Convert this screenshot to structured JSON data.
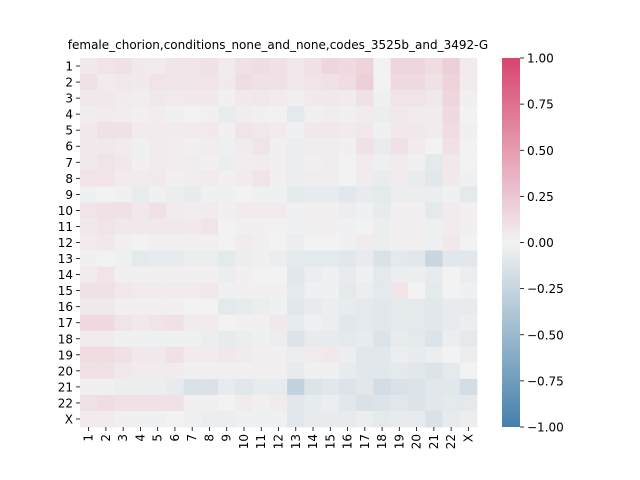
{
  "chart_data": {
    "type": "heatmap",
    "title": "female_chorion,conditions_none_and_none,codes_3525b_and_3492-G",
    "xlabel": "",
    "ylabel": "",
    "labels": [
      "1",
      "2",
      "3",
      "4",
      "5",
      "6",
      "7",
      "8",
      "9",
      "10",
      "11",
      "12",
      "13",
      "14",
      "15",
      "16",
      "17",
      "18",
      "19",
      "20",
      "21",
      "22",
      "X"
    ],
    "vlim": [
      -1.0,
      1.0
    ],
    "colorbar": {
      "ticks": [
        1.0,
        0.75,
        0.5,
        0.25,
        0.0,
        -0.25,
        -0.5,
        -0.75,
        -1.0
      ],
      "tick_labels": [
        "1.00",
        "0.75",
        "0.50",
        "0.25",
        "0.00",
        "−0.25",
        "−0.50",
        "−0.75",
        "−1.00"
      ],
      "high_color": "#d8456f",
      "mid_color": "#f2f2f2",
      "low_color": "#4580ab"
    },
    "values": [
      [
        0.05,
        0.08,
        0.1,
        0.05,
        0.04,
        0.08,
        0.08,
        0.1,
        0.04,
        0.1,
        0.12,
        0.1,
        0.06,
        0.1,
        0.16,
        0.14,
        0.18,
        0.0,
        0.16,
        0.16,
        0.12,
        0.2,
        0.04
      ],
      [
        0.1,
        0.04,
        0.06,
        0.05,
        0.08,
        0.07,
        0.07,
        0.08,
        0.05,
        0.12,
        0.1,
        0.1,
        0.06,
        0.08,
        0.1,
        0.12,
        0.2,
        0.0,
        0.14,
        0.14,
        0.1,
        0.18,
        0.04
      ],
      [
        0.06,
        0.06,
        0.04,
        0.03,
        0.06,
        0.04,
        0.05,
        0.05,
        0.02,
        0.05,
        0.06,
        0.04,
        0.02,
        0.05,
        0.06,
        0.04,
        0.1,
        -0.02,
        0.08,
        0.08,
        0.06,
        0.16,
        0.02
      ],
      [
        0.03,
        0.04,
        0.03,
        0.02,
        0.03,
        -0.02,
        0.0,
        0.02,
        -0.05,
        0.03,
        0.02,
        0.01,
        -0.08,
        0.02,
        0.03,
        0.02,
        0.04,
        -0.04,
        0.06,
        0.04,
        0.04,
        0.14,
        0.0
      ],
      [
        0.05,
        0.1,
        0.1,
        0.04,
        0.04,
        0.04,
        0.04,
        0.05,
        0.02,
        0.08,
        0.06,
        0.04,
        -0.02,
        0.06,
        0.06,
        0.04,
        0.06,
        -0.02,
        0.06,
        0.06,
        0.04,
        0.12,
        0.02
      ],
      [
        0.05,
        0.06,
        0.04,
        -0.02,
        0.04,
        0.03,
        0.02,
        0.03,
        -0.03,
        0.04,
        0.08,
        0.02,
        -0.04,
        0.03,
        0.03,
        0.02,
        0.1,
        -0.05,
        0.1,
        0.04,
        0.0,
        0.1,
        0.0
      ],
      [
        0.06,
        0.08,
        0.06,
        0.02,
        0.04,
        0.03,
        0.03,
        0.02,
        -0.04,
        0.03,
        0.04,
        0.02,
        -0.04,
        0.02,
        0.03,
        0.0,
        0.04,
        -0.03,
        0.04,
        0.02,
        -0.08,
        0.06,
        0.0
      ],
      [
        0.08,
        0.08,
        0.04,
        0.04,
        0.05,
        0.02,
        0.03,
        0.04,
        0.02,
        0.04,
        0.08,
        0.02,
        -0.04,
        0.03,
        0.03,
        0.0,
        0.04,
        -0.05,
        0.04,
        -0.05,
        -0.1,
        0.05,
        -0.02
      ],
      [
        -0.02,
        0.0,
        0.02,
        -0.05,
        -0.02,
        -0.04,
        -0.06,
        -0.02,
        -0.02,
        0.0,
        -0.02,
        -0.02,
        -0.08,
        -0.06,
        -0.06,
        -0.1,
        -0.06,
        -0.08,
        -0.04,
        -0.04,
        -0.04,
        -0.02,
        -0.08
      ],
      [
        0.08,
        0.1,
        0.1,
        0.06,
        0.1,
        0.04,
        0.03,
        0.04,
        0.02,
        0.04,
        0.04,
        0.04,
        -0.02,
        0.02,
        0.02,
        -0.04,
        -0.02,
        -0.06,
        0.02,
        0.02,
        -0.08,
        0.04,
        0.02
      ],
      [
        0.06,
        0.08,
        0.06,
        0.06,
        0.06,
        0.06,
        0.05,
        0.08,
        0.0,
        0.02,
        0.02,
        0.01,
        -0.02,
        0.02,
        0.02,
        -0.02,
        0.0,
        -0.04,
        0.02,
        0.02,
        -0.03,
        0.04,
        0.02
      ],
      [
        0.04,
        0.06,
        0.02,
        0.0,
        0.02,
        0.02,
        0.02,
        0.02,
        0.0,
        0.04,
        0.02,
        0.0,
        -0.04,
        0.0,
        0.0,
        -0.02,
        0.04,
        -0.04,
        0.02,
        0.02,
        -0.03,
        0.06,
        0.0
      ],
      [
        0.02,
        0.0,
        -0.02,
        -0.08,
        -0.06,
        -0.06,
        -0.04,
        -0.04,
        -0.08,
        -0.04,
        -0.02,
        -0.04,
        -0.08,
        -0.08,
        -0.08,
        -0.1,
        -0.06,
        -0.14,
        -0.08,
        -0.1,
        -0.25,
        -0.1,
        -0.1
      ],
      [
        0.04,
        0.08,
        0.02,
        0.02,
        0.02,
        0.02,
        0.02,
        0.02,
        -0.04,
        0.02,
        0.0,
        0.0,
        -0.1,
        -0.04,
        -0.02,
        -0.06,
        -0.02,
        -0.08,
        -0.04,
        -0.04,
        -0.06,
        0.0,
        -0.04
      ],
      [
        0.1,
        0.1,
        0.06,
        0.04,
        0.04,
        0.04,
        0.04,
        0.06,
        -0.02,
        0.02,
        0.02,
        0.02,
        -0.08,
        -0.02,
        -0.02,
        -0.08,
        -0.04,
        -0.08,
        0.08,
        0.0,
        -0.08,
        0.0,
        -0.02
      ],
      [
        0.06,
        0.06,
        0.02,
        0.02,
        0.02,
        0.02,
        0.0,
        0.0,
        -0.08,
        -0.06,
        -0.04,
        -0.02,
        -0.1,
        -0.06,
        -0.04,
        -0.06,
        -0.08,
        -0.1,
        -0.08,
        -0.08,
        -0.1,
        -0.06,
        -0.06
      ],
      [
        0.14,
        0.14,
        0.08,
        0.06,
        0.08,
        0.1,
        0.04,
        0.04,
        0.0,
        0.02,
        0.02,
        0.06,
        -0.06,
        -0.02,
        -0.04,
        -0.1,
        -0.08,
        -0.1,
        -0.08,
        -0.08,
        -0.1,
        -0.06,
        -0.04
      ],
      [
        0.04,
        0.04,
        -0.02,
        -0.02,
        -0.02,
        -0.02,
        -0.02,
        -0.04,
        -0.06,
        -0.04,
        -0.02,
        -0.04,
        -0.12,
        -0.06,
        -0.06,
        -0.08,
        -0.06,
        -0.12,
        -0.06,
        -0.08,
        -0.12,
        -0.04,
        -0.08
      ],
      [
        0.12,
        0.12,
        0.1,
        0.06,
        0.06,
        0.1,
        0.04,
        0.04,
        0.06,
        0.04,
        0.02,
        0.02,
        -0.04,
        0.04,
        0.06,
        -0.04,
        -0.1,
        -0.1,
        -0.04,
        -0.06,
        -0.04,
        0.0,
        -0.04
      ],
      [
        0.1,
        0.1,
        0.06,
        0.04,
        0.04,
        0.04,
        0.02,
        0.02,
        0.02,
        0.02,
        0.02,
        0.02,
        -0.06,
        -0.02,
        -0.02,
        -0.06,
        -0.1,
        -0.1,
        -0.08,
        -0.1,
        -0.12,
        -0.08,
        0.0
      ],
      [
        0.02,
        0.02,
        -0.04,
        -0.04,
        -0.04,
        -0.06,
        -0.14,
        -0.14,
        -0.06,
        -0.1,
        -0.06,
        -0.06,
        -0.28,
        -0.12,
        -0.1,
        -0.12,
        -0.1,
        -0.18,
        -0.14,
        -0.12,
        -0.1,
        -0.1,
        -0.18
      ],
      [
        0.1,
        0.12,
        0.1,
        0.1,
        0.1,
        0.1,
        0.02,
        0.02,
        0.0,
        0.04,
        0.02,
        0.04,
        -0.1,
        -0.06,
        -0.04,
        -0.1,
        -0.14,
        -0.12,
        -0.1,
        -0.12,
        -0.1,
        -0.08,
        -0.08
      ],
      [
        0.04,
        0.04,
        0.02,
        -0.02,
        -0.02,
        0.0,
        -0.02,
        -0.04,
        -0.04,
        -0.02,
        -0.02,
        -0.02,
        -0.1,
        -0.06,
        -0.06,
        -0.06,
        -0.04,
        -0.08,
        -0.06,
        -0.06,
        -0.14,
        -0.06,
        -0.04
      ]
    ]
  }
}
